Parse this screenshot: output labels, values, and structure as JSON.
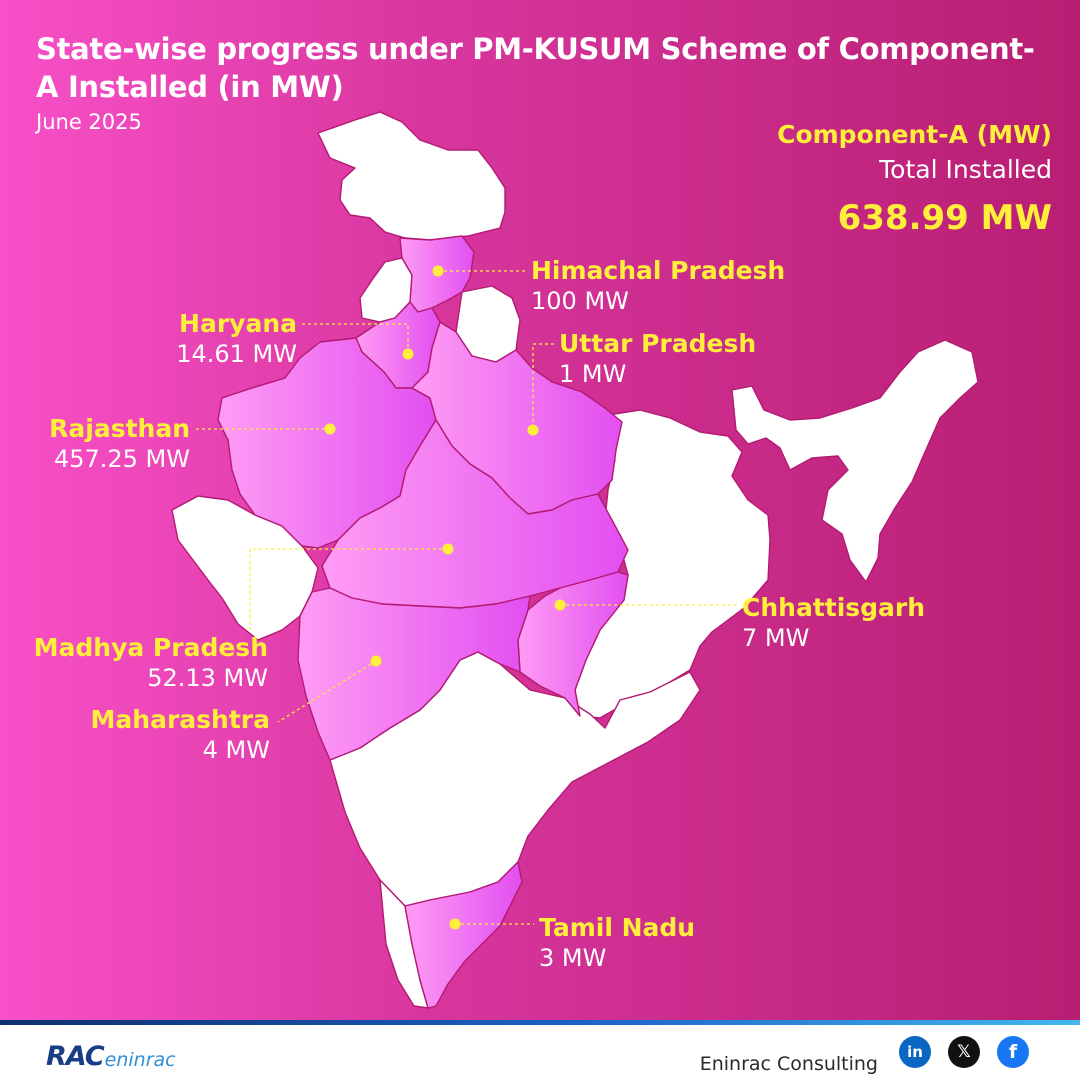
{
  "header": {
    "title": "State-wise progress under PM-KUSUM Scheme of Component-A Installed (in MW)",
    "date": "June 2025"
  },
  "summary": {
    "label": "Component-A (MW)",
    "sublabel": "Total Installed",
    "value": "638.99 MW"
  },
  "states": [
    {
      "name": "Himachal Pradesh",
      "value": "100 MW"
    },
    {
      "name": "Haryana",
      "value": "14.61 MW"
    },
    {
      "name": "Uttar Pradesh",
      "value": "1 MW"
    },
    {
      "name": "Rajasthan",
      "value": "457.25 MW"
    },
    {
      "name": "Madhya Pradesh",
      "value": "52.13 MW"
    },
    {
      "name": "Chhattisgarh",
      "value": "7 MW"
    },
    {
      "name": "Maharashtra",
      "value": "4 MW"
    },
    {
      "name": "Tamil Nadu",
      "value": "3 MW"
    }
  ],
  "colors": {
    "background_left": "#f850c8",
    "background_right": "#b81e72",
    "highlight_state_light": "#ff8cf0",
    "highlight_state_dark": "#e850ee",
    "label_accent": "#ffef3a",
    "value_text": "#ffffff"
  },
  "footer": {
    "logo_rac": "RAC",
    "logo_eninrac": "eninrac",
    "brand": "Eninrac Consulting",
    "social": [
      {
        "name": "linkedin-icon",
        "glyph": "in"
      },
      {
        "name": "x-icon",
        "glyph": "𝕏"
      },
      {
        "name": "facebook-icon",
        "glyph": "f"
      }
    ]
  }
}
